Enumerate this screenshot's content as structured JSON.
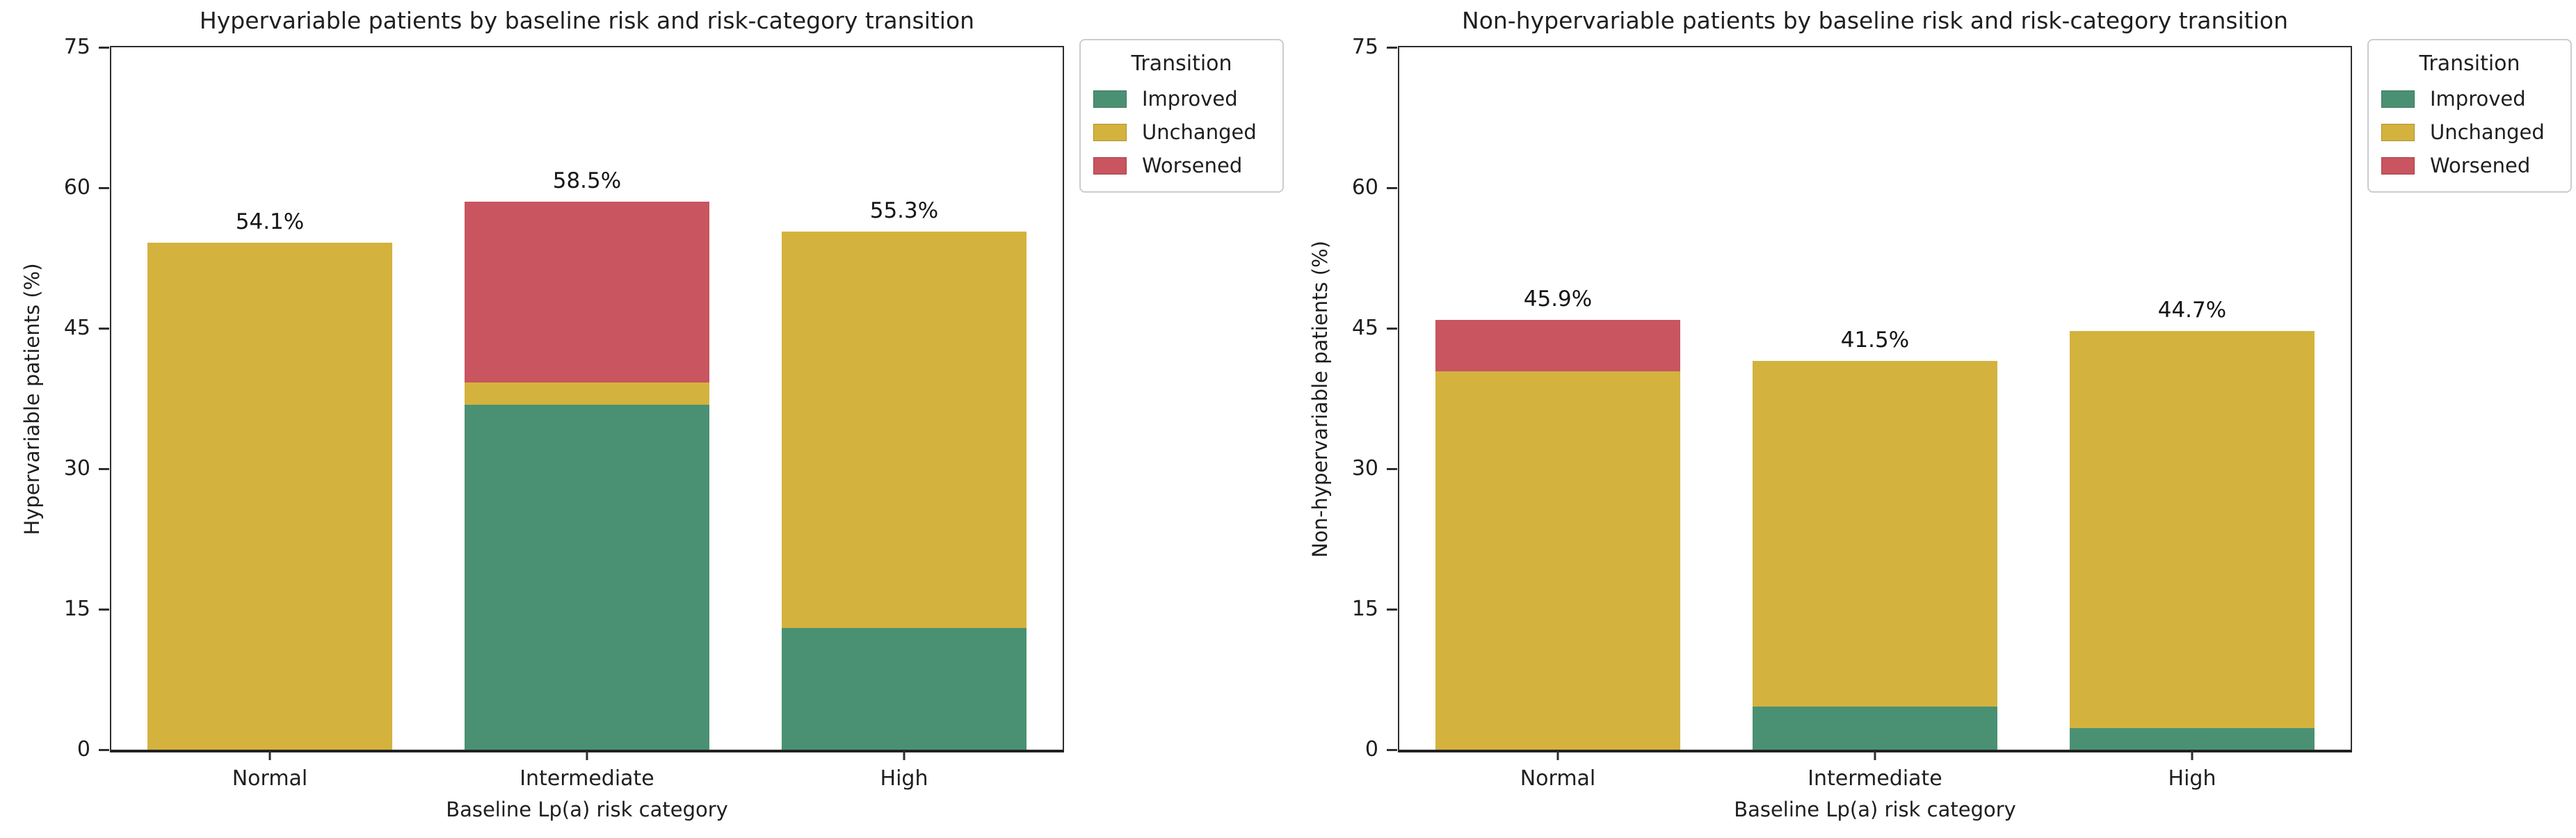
{
  "chart_data": [
    {
      "type": "bar",
      "stacked": true,
      "title": "Hypervariable patients by baseline risk and risk-category transition",
      "xlabel": "Baseline Lp(a) risk category",
      "ylabel": "Hypervariable patients (%)",
      "ylim": [
        0,
        75
      ],
      "yticks": [
        0,
        15,
        30,
        45,
        60,
        75
      ],
      "grid": false,
      "categories": [
        "Normal",
        "Intermediate",
        "High"
      ],
      "series": [
        {
          "name": "Improved",
          "color": "#4a9173",
          "values": [
            0.0,
            36.8,
            13.0
          ]
        },
        {
          "name": "Unchanged",
          "color": "#d4b23e",
          "values": [
            54.1,
            2.4,
            42.3
          ]
        },
        {
          "name": "Worsened",
          "color": "#c8555f",
          "values": [
            0.0,
            19.3,
            0.0
          ]
        }
      ],
      "bar_total_labels": [
        "54.1%",
        "58.5%",
        "55.3%"
      ],
      "legend": {
        "title": "Transition",
        "position": "outside upper right",
        "entries": [
          "Improved",
          "Unchanged",
          "Worsened"
        ]
      }
    },
    {
      "type": "bar",
      "stacked": true,
      "title": "Non-hypervariable patients by baseline risk and risk-category transition",
      "xlabel": "Baseline Lp(a) risk category",
      "ylabel": "Non-hypervariable patients (%)",
      "ylim": [
        0,
        75
      ],
      "yticks": [
        0,
        15,
        30,
        45,
        60,
        75
      ],
      "grid": false,
      "categories": [
        "Normal",
        "Intermediate",
        "High"
      ],
      "series": [
        {
          "name": "Improved",
          "color": "#4a9173",
          "values": [
            0.0,
            4.6,
            2.3
          ]
        },
        {
          "name": "Unchanged",
          "color": "#d4b23e",
          "values": [
            40.4,
            36.9,
            42.4
          ]
        },
        {
          "name": "Worsened",
          "color": "#c8555f",
          "values": [
            5.5,
            0.0,
            0.0
          ]
        }
      ],
      "bar_total_labels": [
        "45.9%",
        "41.5%",
        "44.7%"
      ],
      "legend": {
        "title": "Transition",
        "position": "outside upper right",
        "entries": [
          "Improved",
          "Unchanged",
          "Worsened"
        ]
      }
    }
  ],
  "colors": {
    "improved": "#4a9173",
    "unchanged": "#d4b23e",
    "worsened": "#c8555f",
    "spine": "#2e2e2e",
    "legend_border": "#cccccc",
    "background": "#ffffff"
  }
}
